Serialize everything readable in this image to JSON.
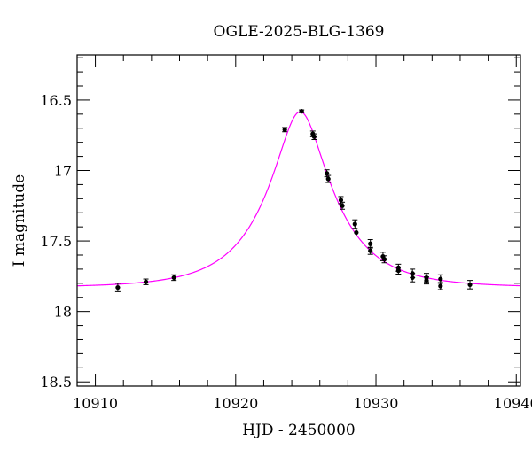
{
  "chart_data": {
    "type": "scatter",
    "title": "OGLE-2025-BLG-1369",
    "xlabel": "HJD - 2450000",
    "ylabel": "I magnitude",
    "xlim": [
      10908.7,
      10940.3
    ],
    "ylim": [
      18.53,
      16.18
    ],
    "y_inverted": true,
    "grid": false,
    "xticks": [
      10910,
      10920,
      10930,
      10940
    ],
    "xtick_labels": [
      "10910",
      "10920",
      "10930",
      "10940"
    ],
    "yticks": [
      16.5,
      17,
      17.5,
      18,
      18.5
    ],
    "ytick_labels": [
      "16.5",
      "17",
      "17.5",
      "18",
      "18.5"
    ],
    "colors": {
      "points": "#000000",
      "model": "#ff00ff"
    },
    "points": [
      {
        "x": 10911.6,
        "y": 17.83,
        "err": 0.03
      },
      {
        "x": 10913.6,
        "y": 17.79,
        "err": 0.02
      },
      {
        "x": 10915.6,
        "y": 17.76,
        "err": 0.02
      },
      {
        "x": 10923.5,
        "y": 16.71,
        "err": 0.015
      },
      {
        "x": 10924.7,
        "y": 16.58,
        "err": 0.01
      },
      {
        "x": 10925.5,
        "y": 16.74,
        "err": 0.02
      },
      {
        "x": 10925.6,
        "y": 16.76,
        "err": 0.02
      },
      {
        "x": 10926.5,
        "y": 17.02,
        "err": 0.025
      },
      {
        "x": 10926.6,
        "y": 17.06,
        "err": 0.025
      },
      {
        "x": 10927.5,
        "y": 17.21,
        "err": 0.025
      },
      {
        "x": 10927.6,
        "y": 17.25,
        "err": 0.025
      },
      {
        "x": 10928.5,
        "y": 17.38,
        "err": 0.03
      },
      {
        "x": 10928.6,
        "y": 17.44,
        "err": 0.025
      },
      {
        "x": 10929.6,
        "y": 17.52,
        "err": 0.03
      },
      {
        "x": 10929.6,
        "y": 17.57,
        "err": 0.025
      },
      {
        "x": 10930.5,
        "y": 17.61,
        "err": 0.03
      },
      {
        "x": 10930.6,
        "y": 17.63,
        "err": 0.025
      },
      {
        "x": 10931.6,
        "y": 17.69,
        "err": 0.025
      },
      {
        "x": 10931.6,
        "y": 17.71,
        "err": 0.025
      },
      {
        "x": 10932.6,
        "y": 17.73,
        "err": 0.03
      },
      {
        "x": 10932.6,
        "y": 17.76,
        "err": 0.03
      },
      {
        "x": 10933.6,
        "y": 17.76,
        "err": 0.03
      },
      {
        "x": 10933.6,
        "y": 17.78,
        "err": 0.025
      },
      {
        "x": 10934.6,
        "y": 17.77,
        "err": 0.03
      },
      {
        "x": 10934.6,
        "y": 17.82,
        "err": 0.025
      },
      {
        "x": 10936.7,
        "y": 17.81,
        "err": 0.03
      }
    ],
    "model": {
      "type": "microlensing-curve",
      "t0": 10924.6,
      "u0": 0.33,
      "tE": 4.7,
      "baseline": 17.83
    }
  }
}
